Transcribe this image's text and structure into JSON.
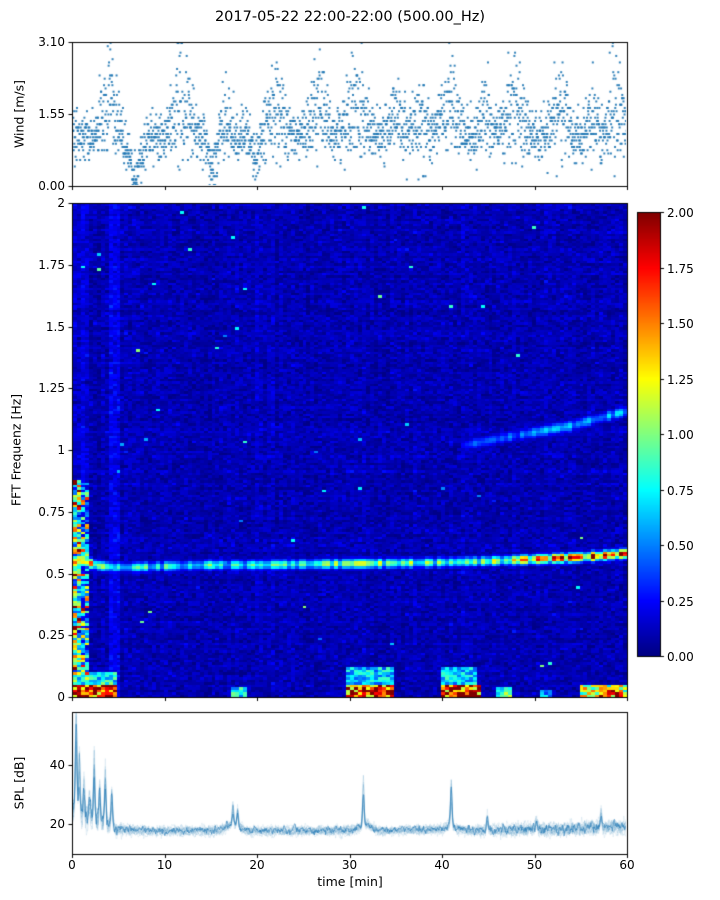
{
  "figure": {
    "title": "2017-05-22 22:00-22:00 (500.00_Hz)",
    "background": "#ffffff"
  },
  "chart_data": [
    {
      "id": "wind",
      "type": "scatter",
      "ylabel": "Wind [m/s]",
      "xlim": [
        0,
        60
      ],
      "ylim": [
        0,
        3.1
      ],
      "yticks": [
        {
          "v": 0.0,
          "label": "0.00"
        },
        {
          "v": 1.55,
          "label": "1.55"
        },
        {
          "v": 3.1,
          "label": "3.10"
        }
      ],
      "xtick_values": [
        0,
        10,
        20,
        30,
        40,
        50,
        60
      ],
      "marker_color": "#1f77b4",
      "synthesis": {
        "seed": 42,
        "points_per_min": 40,
        "baseline": 1.05,
        "jitter": 0.27,
        "quantize": 0.07,
        "bursts": [
          {
            "t": 4.0,
            "w": 1.0,
            "amp": 1.85
          },
          {
            "t": 11.9,
            "w": 1.1,
            "amp": 1.9
          },
          {
            "t": 16.6,
            "w": 0.7,
            "amp": 1.1
          },
          {
            "t": 22.0,
            "w": 1.3,
            "amp": 1.5
          },
          {
            "t": 26.6,
            "w": 1.0,
            "amp": 1.8
          },
          {
            "t": 30.8,
            "w": 1.3,
            "amp": 1.85
          },
          {
            "t": 35.0,
            "w": 1.0,
            "amp": 1.45
          },
          {
            "t": 37.6,
            "w": 0.7,
            "amp": 1.1
          },
          {
            "t": 40.9,
            "w": 1.2,
            "amp": 1.75
          },
          {
            "t": 44.6,
            "w": 0.7,
            "amp": 1.25
          },
          {
            "t": 48.0,
            "w": 1.1,
            "amp": 1.9
          },
          {
            "t": 52.7,
            "w": 1.0,
            "amp": 1.7
          },
          {
            "t": 56.2,
            "w": 0.6,
            "amp": 1.2
          },
          {
            "t": 58.8,
            "w": 0.9,
            "amp": 1.85
          }
        ],
        "lulls": [
          {
            "t": 6.8,
            "w": 0.7,
            "depth": 0.9
          },
          {
            "t": 15.2,
            "w": 0.6,
            "depth": 0.7
          },
          {
            "t": 19.9,
            "w": 0.5,
            "depth": 0.5
          }
        ]
      }
    },
    {
      "id": "spectrogram",
      "type": "heatmap",
      "ylabel": "FFT Frequenz [Hz]",
      "xlim": [
        0,
        60
      ],
      "ylim": [
        0,
        2
      ],
      "clim": [
        0,
        2
      ],
      "colormap": "jet",
      "yticks": [
        {
          "v": 0,
          "label": "0"
        },
        {
          "v": 0.25,
          "label": "0.25"
        },
        {
          "v": 0.5,
          "label": "0.5"
        },
        {
          "v": 0.75,
          "label": "0.75"
        },
        {
          "v": 1,
          "label": "1"
        },
        {
          "v": 1.25,
          "label": "1.25"
        },
        {
          "v": 1.5,
          "label": "1.5"
        },
        {
          "v": 1.75,
          "label": "1.75"
        },
        {
          "v": 2,
          "label": "2"
        }
      ],
      "xtick_values": [
        0,
        10,
        20,
        30,
        40,
        50,
        60
      ],
      "colorbar": {
        "ticks": [
          {
            "v": 0.0,
            "label": "0.00"
          },
          {
            "v": 0.25,
            "label": "0.25"
          },
          {
            "v": 0.5,
            "label": "0.50"
          },
          {
            "v": 0.75,
            "label": "0.75"
          },
          {
            "v": 1.0,
            "label": "1.00"
          },
          {
            "v": 1.25,
            "label": "1.25"
          },
          {
            "v": 1.5,
            "label": "1.50"
          },
          {
            "v": 1.75,
            "label": "1.75"
          },
          {
            "v": 2.0,
            "label": "2.00"
          }
        ]
      },
      "background": {
        "mean": 0.1,
        "std": 0.05
      },
      "bins": {
        "t": 140,
        "f": 200
      },
      "seed": 7,
      "tone_track": {
        "t": [
          0,
          1.5,
          3,
          6,
          10,
          15,
          20,
          25,
          30,
          35,
          40,
          45,
          50,
          54,
          57,
          60
        ],
        "f": [
          0.555,
          0.545,
          0.53,
          0.525,
          0.53,
          0.535,
          0.535,
          0.538,
          0.54,
          0.542,
          0.545,
          0.55,
          0.558,
          0.565,
          0.572,
          0.582
        ],
        "i": [
          1.9,
          1.4,
          1.0,
          0.8,
          0.75,
          0.8,
          0.75,
          0.85,
          1.05,
          0.9,
          0.85,
          0.95,
          1.35,
          1.6,
          1.85,
          1.7
        ],
        "sigma_hz": 0.013
      },
      "harmonic_track": {
        "t": [
          42,
          48,
          54,
          60
        ],
        "f": [
          1.02,
          1.06,
          1.1,
          1.16
        ],
        "i": [
          0.35,
          0.45,
          0.55,
          0.62
        ],
        "sigma_hz": 0.015
      },
      "startup_column": {
        "t_end": 1.6,
        "f_max": 0.88,
        "mean": 0.55,
        "std": 0.5
      },
      "bright_columns": [
        {
          "t0": 3.8,
          "t1": 5.2,
          "boost": 0.1
        },
        {
          "t0": 0.0,
          "t1": 1.6,
          "boost": 0.05
        }
      ],
      "low_band_events": [
        {
          "t0": 0.0,
          "t1": 4.5,
          "f0": 0.0,
          "f1": 0.05,
          "i": 1.9
        },
        {
          "t0": 1.0,
          "t1": 4.8,
          "f0": 0.05,
          "f1": 0.1,
          "i": 0.8
        },
        {
          "t0": 17.0,
          "t1": 19.0,
          "f0": 0.0,
          "f1": 0.04,
          "i": 0.8
        },
        {
          "t0": 29.5,
          "t1": 34.5,
          "f0": 0.0,
          "f1": 0.05,
          "i": 1.8
        },
        {
          "t0": 29.5,
          "t1": 34.5,
          "f0": 0.05,
          "f1": 0.12,
          "i": 0.7
        },
        {
          "t0": 40.0,
          "t1": 44.0,
          "f0": 0.0,
          "f1": 0.05,
          "i": 1.9
        },
        {
          "t0": 40.0,
          "t1": 43.5,
          "f0": 0.05,
          "f1": 0.12,
          "i": 0.7
        },
        {
          "t0": 46.0,
          "t1": 47.5,
          "f0": 0.0,
          "f1": 0.04,
          "i": 0.9
        },
        {
          "t0": 50.5,
          "t1": 52.0,
          "f0": 0.0,
          "f1": 0.03,
          "i": 0.6
        },
        {
          "t0": 55.0,
          "t1": 60.0,
          "f0": 0.0,
          "f1": 0.05,
          "i": 1.2
        },
        {
          "t0": 57.0,
          "t1": 59.5,
          "f0": 0.0,
          "f1": 0.03,
          "i": 1.7
        }
      ]
    },
    {
      "id": "spl",
      "type": "line",
      "ylabel": "SPL [dB]",
      "xlabel": "time [min]",
      "xlim": [
        0,
        60
      ],
      "ylim": [
        10,
        58
      ],
      "yticks": [
        {
          "v": 20,
          "label": "20"
        },
        {
          "v": 40,
          "label": "40"
        }
      ],
      "xticks": [
        {
          "v": 0,
          "label": "0"
        },
        {
          "v": 10,
          "label": "10"
        },
        {
          "v": 20,
          "label": "20"
        },
        {
          "v": 30,
          "label": "30"
        },
        {
          "v": 40,
          "label": "40"
        },
        {
          "v": 50,
          "label": "50"
        },
        {
          "v": 60,
          "label": "60"
        }
      ],
      "line_color": "#1f77b4",
      "seed": 99,
      "n_traces": 13,
      "noise_std": 1.1,
      "baseline": {
        "t": [
          0,
          0.3,
          0.8,
          1.5,
          2.5,
          4,
          5,
          8,
          12,
          16,
          17,
          18,
          19,
          24,
          30,
          31,
          32,
          33,
          40,
          40.7,
          41.5,
          43,
          48,
          52,
          56,
          60
        ],
        "y": [
          24,
          27,
          24,
          23,
          22,
          20,
          18.5,
          18,
          18,
          18,
          20,
          19.5,
          18,
          18,
          18,
          19,
          20,
          18,
          18.5,
          20,
          19,
          18,
          18.5,
          18.5,
          19,
          19.5
        ]
      },
      "spikes": [
        {
          "t": 0.45,
          "h": 57
        },
        {
          "t": 0.8,
          "h": 42
        },
        {
          "t": 1.3,
          "h": 34
        },
        {
          "t": 1.9,
          "h": 30
        },
        {
          "t": 2.4,
          "h": 45
        },
        {
          "t": 3.0,
          "h": 34
        },
        {
          "t": 3.6,
          "h": 39
        },
        {
          "t": 4.3,
          "h": 31
        },
        {
          "t": 17.4,
          "h": 27
        },
        {
          "t": 17.9,
          "h": 25
        },
        {
          "t": 31.5,
          "h": 33
        },
        {
          "t": 41.0,
          "h": 33
        },
        {
          "t": 44.9,
          "h": 23
        },
        {
          "t": 50.2,
          "h": 22
        },
        {
          "t": 57.2,
          "h": 24
        }
      ]
    }
  ]
}
